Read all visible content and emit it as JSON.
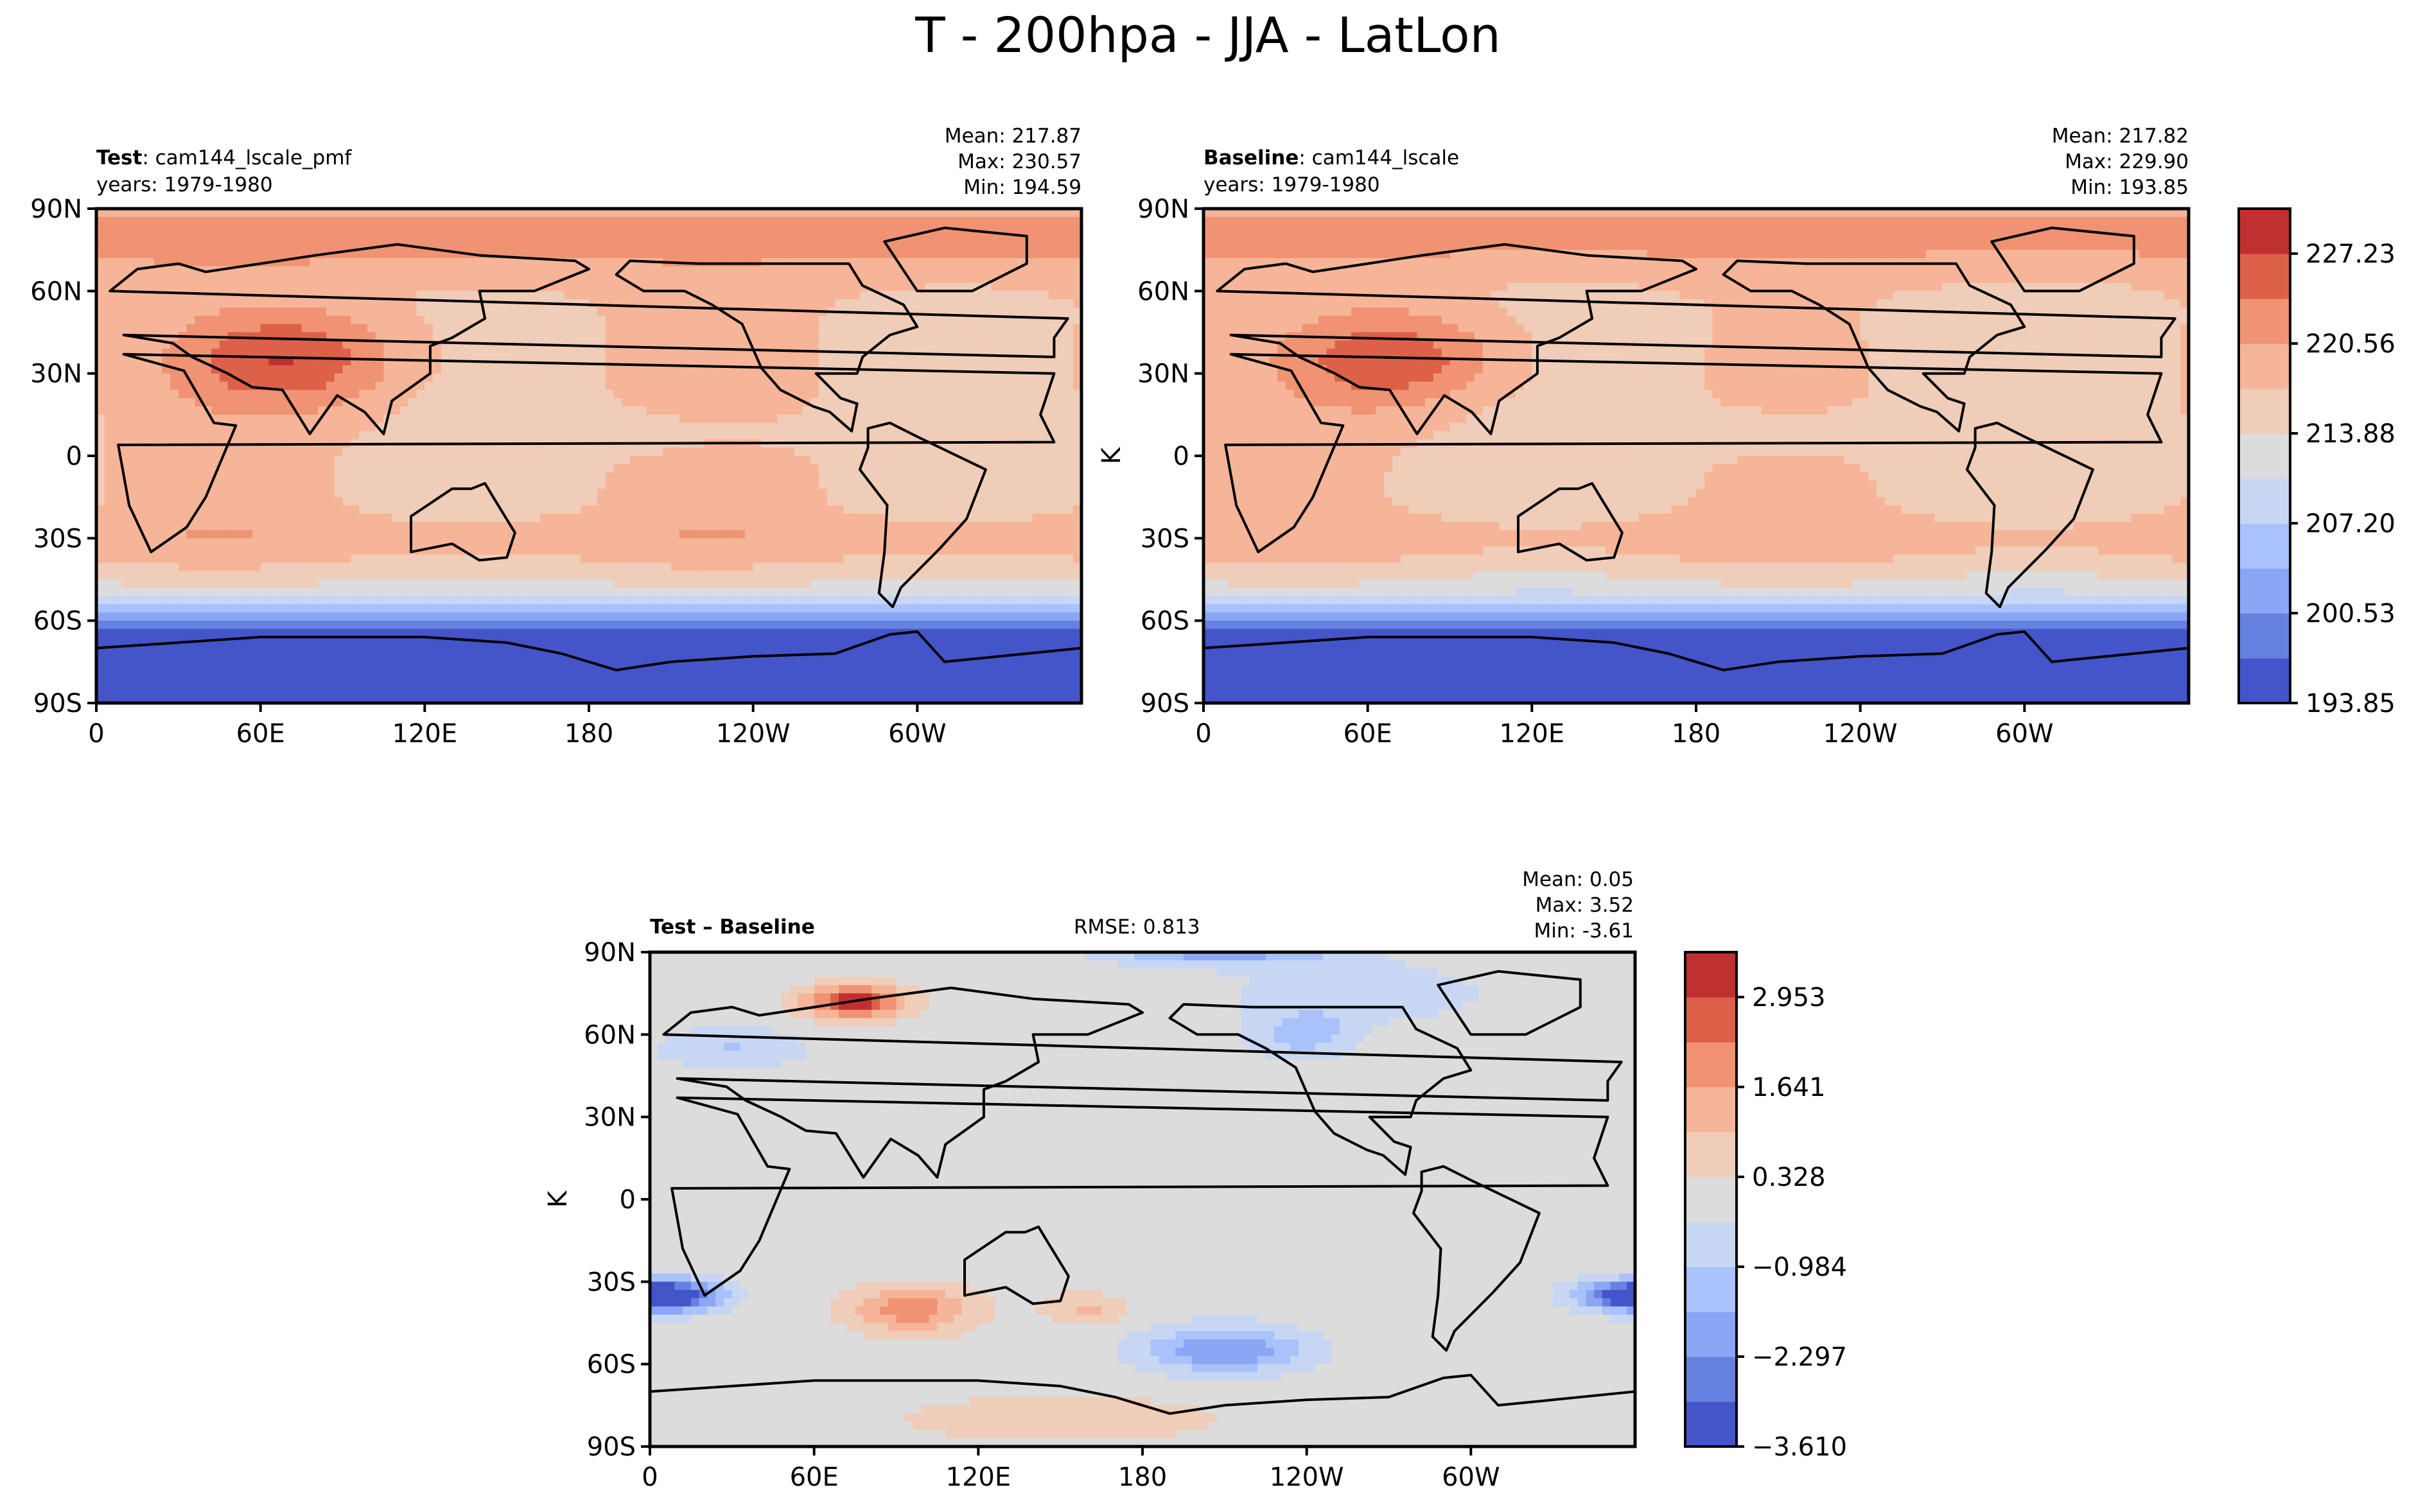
{
  "figure": {
    "title": "T - 200hpa - JJA - LatLon"
  },
  "chart_data": [
    {
      "type": "heatmap",
      "panel": "test",
      "label_bold": "Test",
      "label_rest": ": cam144_lscale_pmf",
      "years": "years: 1979-1980",
      "stats": [
        "Mean: 217.87",
        "Max: 230.57",
        "Min: 194.59"
      ],
      "ylabel": "",
      "x_ticks": [
        "0",
        "60E",
        "120E",
        "180",
        "120W",
        "60W"
      ],
      "y_ticks": [
        "90N",
        "60N",
        "30N",
        "0",
        "30S",
        "60S",
        "90S"
      ],
      "mean": 217.87,
      "max": 230.57,
      "min": 194.59,
      "zonal_bands": [
        {
          "lat": [
            60,
            90
          ],
          "value": 223
        },
        {
          "lat": [
            20,
            60
          ],
          "value": 219
        },
        {
          "lat": [
            -20,
            20
          ],
          "value": 217
        },
        {
          "lat": [
            -40,
            -20
          ],
          "value": 218
        },
        {
          "lat": [
            -55,
            -40
          ],
          "value": 214
        },
        {
          "lat": [
            -65,
            -55
          ],
          "value": 207
        },
        {
          "lat": [
            -90,
            -65
          ],
          "value": 197
        }
      ],
      "xlim": [
        0,
        360
      ],
      "ylim": [
        -90,
        90
      ]
    },
    {
      "type": "heatmap",
      "panel": "baseline",
      "label_bold": "Baseline",
      "label_rest": ": cam144_lscale",
      "years": "years: 1979-1980",
      "stats": [
        "Mean: 217.82",
        "Max: 229.90",
        "Min: 193.85"
      ],
      "ylabel": "K",
      "x_ticks": [
        "0",
        "60E",
        "120E",
        "180",
        "120W",
        "60W"
      ],
      "y_ticks": [
        "90N",
        "60N",
        "30N",
        "0",
        "30S",
        "60S",
        "90S"
      ],
      "mean": 217.82,
      "max": 229.9,
      "min": 193.85,
      "colorbar_ticks": [
        "227.23",
        "220.56",
        "213.88",
        "207.20",
        "200.53",
        "193.85"
      ],
      "xlim": [
        0,
        360
      ],
      "ylim": [
        -90,
        90
      ]
    },
    {
      "type": "heatmap",
      "panel": "diff",
      "label_bold": "Test – Baseline",
      "rmse": "RMSE: 0.813",
      "stats": [
        "Mean:  0.05",
        "Max:  3.52",
        "Min: -3.61"
      ],
      "ylabel": "K",
      "x_ticks": [
        "0",
        "60E",
        "120E",
        "180",
        "120W",
        "60W"
      ],
      "y_ticks": [
        "90N",
        "60N",
        "30N",
        "0",
        "30S",
        "60S",
        "90S"
      ],
      "mean": 0.05,
      "max": 3.52,
      "min": -3.61,
      "colorbar_ticks": [
        "2.953",
        "1.641",
        "0.328",
        "−0.984",
        "−2.297",
        "−3.610"
      ],
      "xlim": [
        0,
        360
      ],
      "ylim": [
        -90,
        90
      ]
    }
  ],
  "colors": {
    "test_bands": [
      "#d45a45",
      "#f0a080",
      "#f5b293",
      "#f2b89c",
      "#dcdcdc",
      "#b5c8ef",
      "#4e67cf"
    ],
    "cmap": [
      "#4355c9",
      "#6682e0",
      "#8aa6f5",
      "#a9c2fb",
      "#c7d7f3",
      "#dcdcdc",
      "#f0cdb9",
      "#f6b598",
      "#f09373",
      "#dd6048",
      "#c03030"
    ],
    "land": "#000000",
    "frame": "#000000"
  }
}
